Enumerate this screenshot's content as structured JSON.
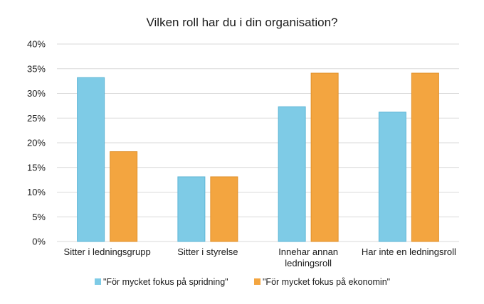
{
  "chart_data": {
    "type": "bar",
    "title": "Vilken roll har du i din organisation?",
    "xlabel": "",
    "ylabel": "",
    "ylim": [
      0,
      40
    ],
    "y_ticks": [
      0,
      5,
      10,
      15,
      20,
      25,
      30,
      35,
      40
    ],
    "y_tick_suffix": "%",
    "grid": true,
    "legend_position": "bottom",
    "categories": [
      [
        "Sitter i ledningsgrupp"
      ],
      [
        "Sitter i styrelse"
      ],
      [
        "Innehar annan",
        "ledningsroll"
      ],
      [
        "Har inte en ledningsroll"
      ]
    ],
    "series": [
      {
        "name": "\"För mycket fokus på spridning\"",
        "color": "#7ecbe6",
        "edge": "#5fb6d6",
        "values": [
          33.2,
          13.1,
          27.3,
          26.2
        ]
      },
      {
        "name": "\"För mycket fokus på ekonomin\"",
        "color": "#f3a540",
        "edge": "#e0902a",
        "values": [
          18.2,
          13.1,
          34.1,
          34.1
        ]
      }
    ]
  }
}
